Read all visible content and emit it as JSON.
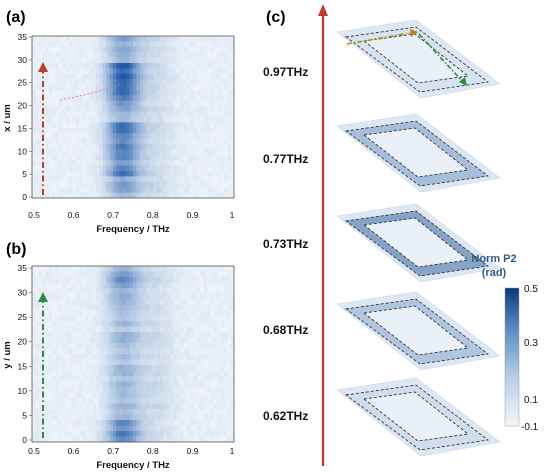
{
  "panels": {
    "a": {
      "letter": "(a)",
      "y_axis_title": "x / um",
      "x_axis_title": "Frequency / THz",
      "y_ticks": [
        "35",
        "30",
        "25",
        "20",
        "15",
        "10",
        "5",
        "0"
      ],
      "x_ticks": [
        "0.5",
        "0.6",
        "0.7",
        "0.8",
        "0.9",
        "1"
      ]
    },
    "b": {
      "letter": "(b)",
      "y_axis_title": "y / um",
      "x_axis_title": "Frequency / THz",
      "y_ticks": [
        "35",
        "30",
        "25",
        "20",
        "15",
        "10",
        "5",
        "0"
      ],
      "x_ticks": [
        "0.5",
        "0.6",
        "0.7",
        "0.8",
        "0.9",
        "1"
      ]
    },
    "c": {
      "letter": "(c)",
      "layers": [
        {
          "label": "0.97THz",
          "intensity": 0.08
        },
        {
          "label": "0.77THz",
          "intensity": 0.35
        },
        {
          "label": "0.73THz",
          "intensity": 0.55
        },
        {
          "label": "0.68THz",
          "intensity": 0.3
        },
        {
          "label": "0.62THz",
          "intensity": 0.12
        }
      ]
    }
  },
  "colorbar": {
    "title_line1": "Norm P2",
    "title_line2": "(rad)",
    "ticks": [
      "0.5",
      "0.3",
      "0.1",
      "-0.1"
    ],
    "color_low": "#f2f6fb",
    "color_high": "#0b3a7a"
  },
  "colors": {
    "map_base": "#eef3f9",
    "map_hot": "#1d5aa8",
    "arrow_red": "#c0392b",
    "arrow_green": "#2e8b3a",
    "arrow_orange": "#b8860b",
    "layer_plate": "#dde8f4"
  }
}
